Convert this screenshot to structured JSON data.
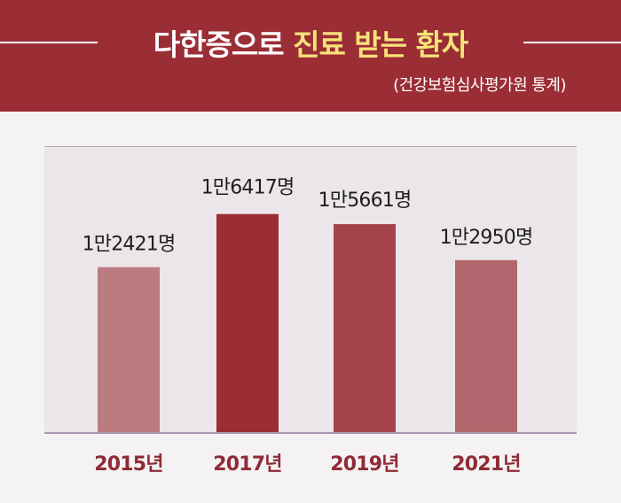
{
  "header": {
    "title_part1": "다한증으로",
    "title_part2": "진료 받는 환자",
    "subtitle": "(건강보험심사평가원 통계)"
  },
  "colors": {
    "header_bg": "#9b2d35",
    "title_highlight": "#f7e37a",
    "bars": [
      "#bb7c81",
      "#9b2d35",
      "#a4434b",
      "#b0666c"
    ],
    "category_label": "#8f2b35"
  },
  "chart_data": {
    "type": "bar",
    "title": "다한증으로 진료 받는 환자",
    "subtitle": "(건강보험심사평가원 통계)",
    "categories": [
      "2015년",
      "2017년",
      "2019년",
      "2021년"
    ],
    "values": [
      12421,
      16417,
      15661,
      12950
    ],
    "data_labels": [
      "1만2421명",
      "1만6417명",
      "1만5661명",
      "1만2950명"
    ],
    "xlabel": "",
    "ylabel": "",
    "grid": false,
    "legend": "none"
  }
}
